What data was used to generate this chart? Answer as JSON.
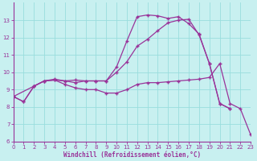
{
  "xlabel": "Windchill (Refroidissement éolien,°C)",
  "bg_color": "#c8f0f0",
  "line_color": "#993399",
  "grid_color": "#99dddd",
  "xlim": [
    0,
    23
  ],
  "ylim": [
    6,
    14
  ],
  "yticks": [
    6,
    7,
    8,
    9,
    10,
    11,
    12,
    13
  ],
  "xticks": [
    0,
    1,
    2,
    3,
    4,
    5,
    6,
    7,
    8,
    9,
    10,
    11,
    12,
    13,
    14,
    15,
    16,
    17,
    18,
    19,
    20,
    21,
    22,
    23
  ],
  "series1_x": [
    0,
    1,
    2,
    3,
    4,
    5,
    6,
    7,
    8,
    9,
    10,
    11,
    12,
    13,
    14,
    15,
    16,
    17,
    18,
    19,
    20,
    21
  ],
  "series1_y": [
    8.6,
    8.3,
    9.2,
    9.5,
    9.6,
    9.5,
    9.4,
    9.5,
    9.5,
    9.5,
    10.3,
    11.8,
    13.2,
    13.3,
    13.25,
    13.1,
    13.2,
    12.8,
    12.2,
    10.5,
    8.2,
    7.9
  ],
  "series2_x": [
    0,
    1,
    2,
    3,
    4,
    5,
    6,
    7,
    8,
    9,
    10,
    11,
    12,
    13,
    14,
    15,
    16,
    17,
    18,
    19,
    20,
    21
  ],
  "series2_y": [
    8.6,
    8.3,
    9.2,
    9.5,
    9.55,
    9.5,
    9.55,
    9.5,
    9.5,
    9.5,
    10.0,
    10.6,
    11.5,
    11.9,
    12.4,
    12.85,
    13.0,
    13.05,
    12.15,
    10.5,
    8.2,
    7.9
  ],
  "series3_x": [
    0,
    2,
    3,
    4,
    5,
    6,
    7,
    8,
    9,
    10,
    11,
    12,
    13,
    14,
    15,
    16,
    17,
    18,
    19,
    20,
    21,
    22,
    23
  ],
  "series3_y": [
    8.6,
    9.2,
    9.5,
    9.55,
    9.3,
    9.1,
    9.0,
    9.0,
    8.8,
    8.8,
    9.0,
    9.3,
    9.4,
    9.4,
    9.45,
    9.5,
    9.55,
    9.6,
    9.7,
    10.5,
    8.2,
    7.9,
    6.4
  ]
}
